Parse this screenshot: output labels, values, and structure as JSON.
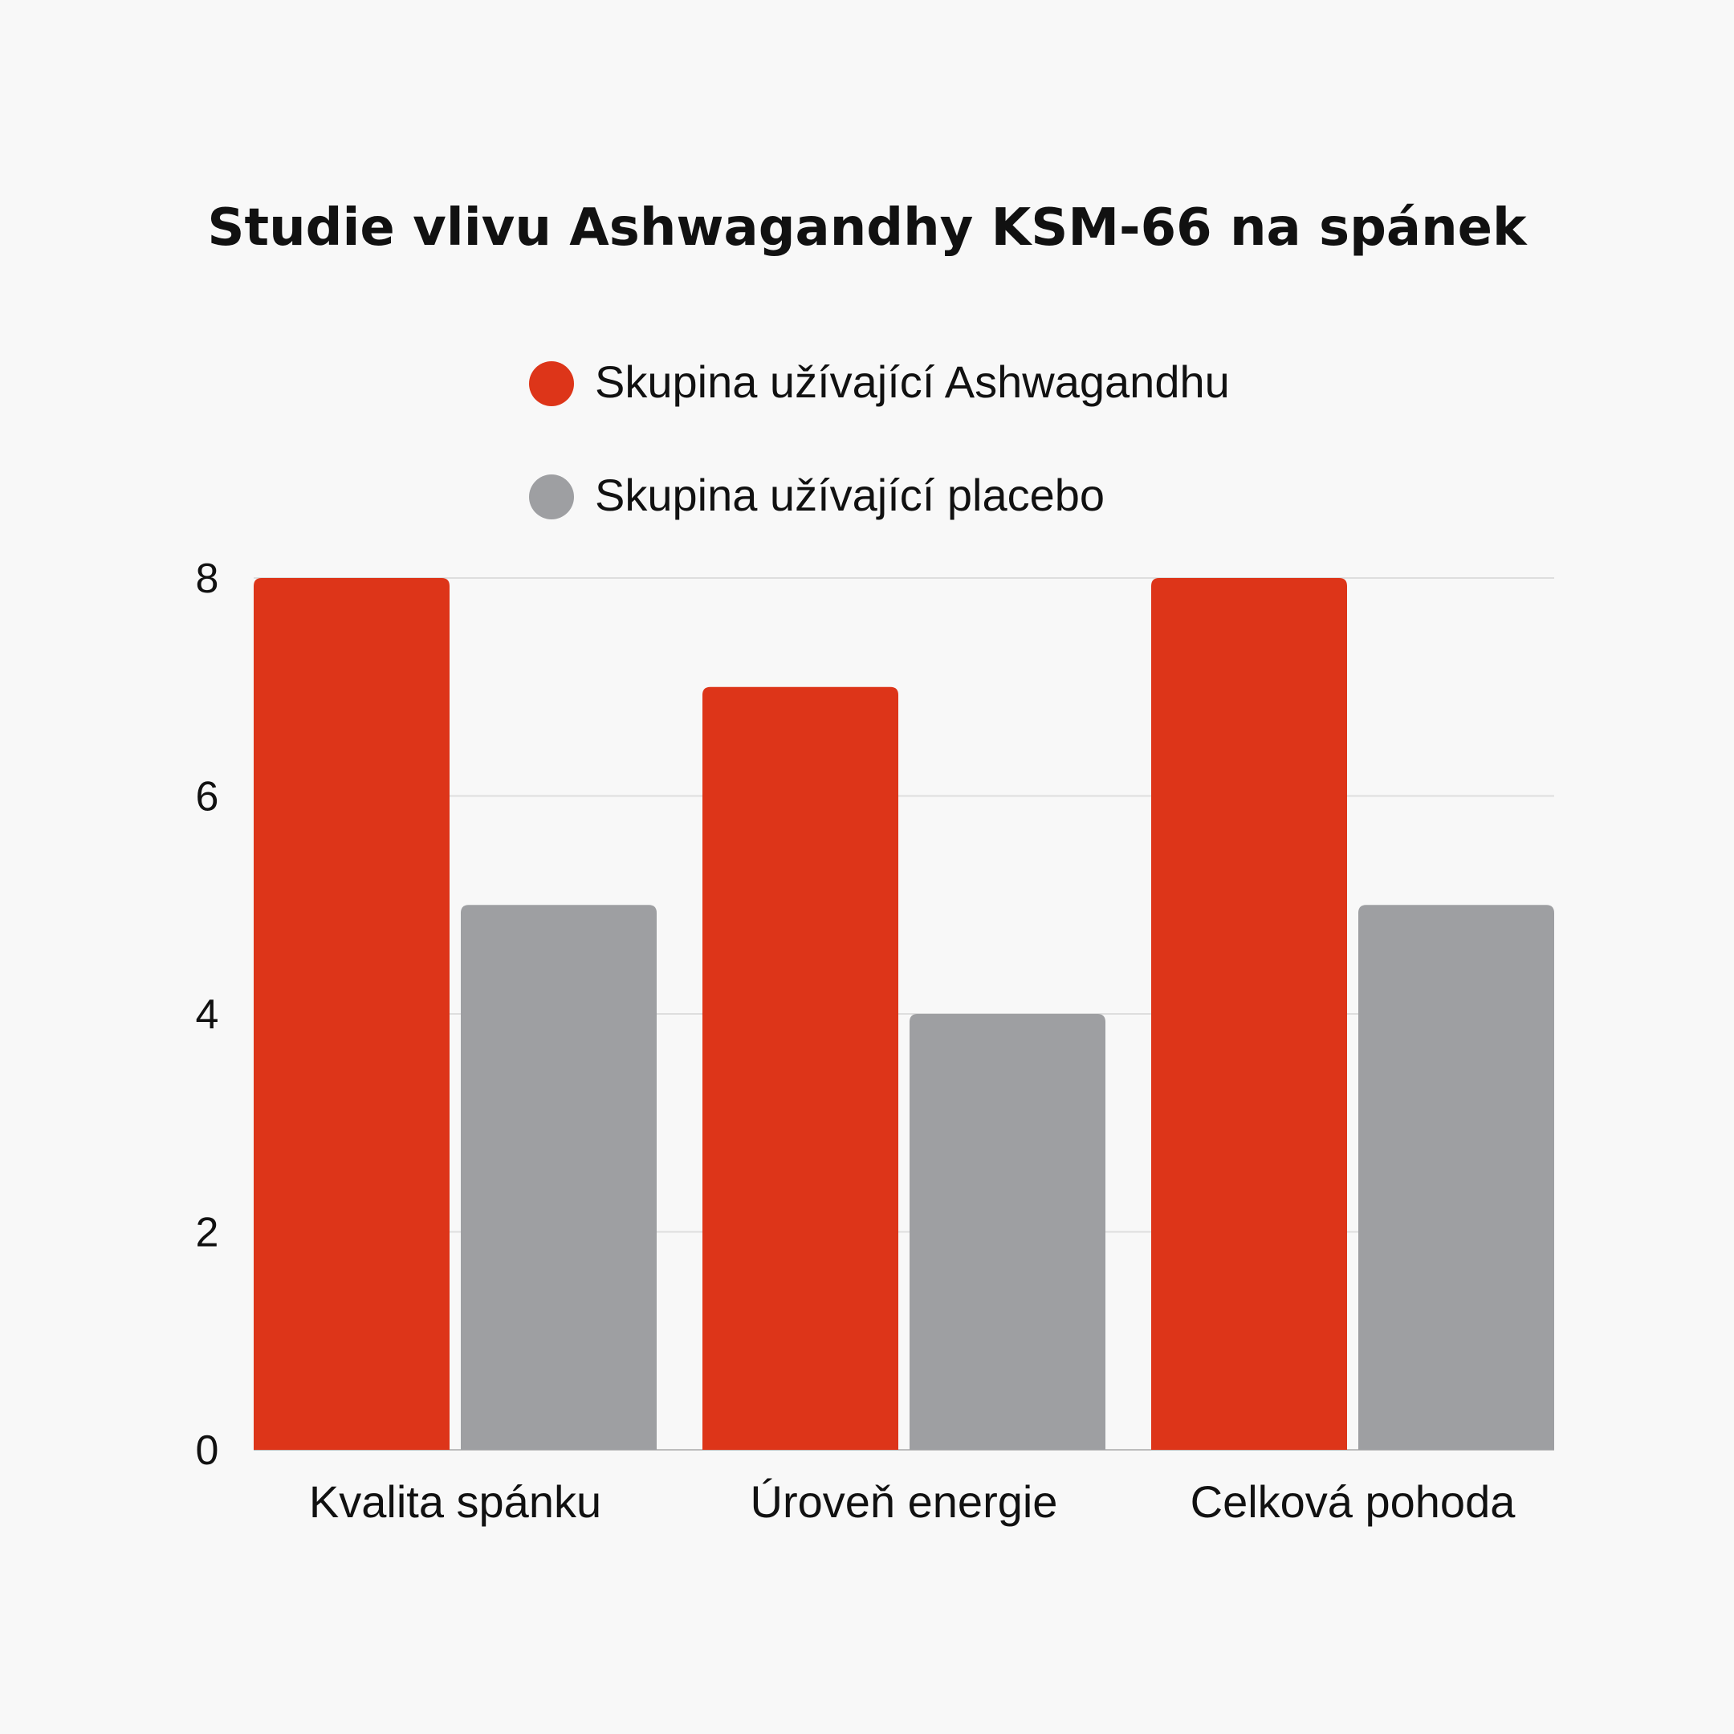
{
  "chart_data": {
    "type": "bar",
    "title": "Studie vlivu Ashwagandhy KSM-66 na spánek",
    "categories": [
      "Kvalita spánku",
      "Úroveň energie",
      "Celková pohoda"
    ],
    "series": [
      {
        "name": "Skupina užívající Ashwagandhu",
        "values": [
          8,
          7,
          8
        ],
        "color": "#dd3519"
      },
      {
        "name": "Skupina užívající placebo",
        "values": [
          5,
          4,
          5
        ],
        "color": "#9e9fa2"
      }
    ],
    "yticks": [
      0,
      2,
      4,
      6,
      8
    ],
    "ylim": [
      0,
      8
    ],
    "xlabel": "",
    "ylabel": "",
    "grid": true,
    "legend_position": "top-center"
  }
}
